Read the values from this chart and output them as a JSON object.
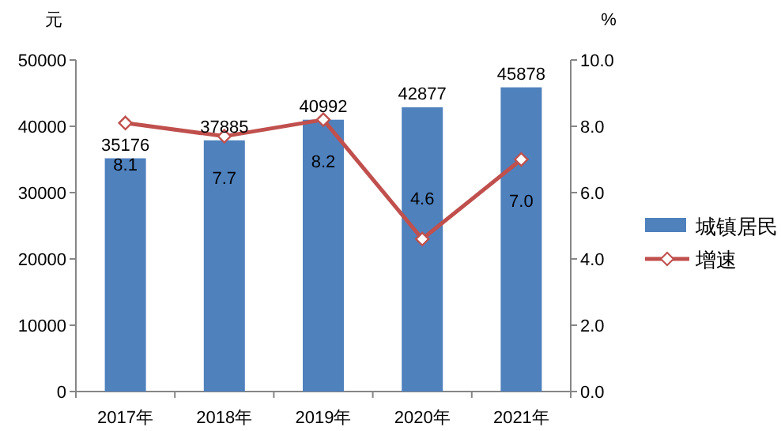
{
  "chart_data": {
    "type": "bar",
    "ylabel": "元",
    "y2label": "%",
    "categories": [
      "2017年",
      "2018年",
      "2019年",
      "2020年",
      "2021年"
    ],
    "series": [
      {
        "name": "城镇居民",
        "color": "#4f81bd",
        "values": [
          35176,
          37885,
          40992,
          42877,
          45878
        ]
      },
      {
        "name": "增速",
        "type": "line",
        "axis": "y2",
        "color": "#c0504d",
        "marker": "diamond",
        "values": [
          8.1,
          7.7,
          8.2,
          4.6,
          7.0
        ],
        "value_labels": [
          "8.1",
          "7.7",
          "8.2",
          "4.6",
          "7.0"
        ]
      }
    ],
    "ylim": [
      0,
      50000
    ],
    "yticks": [
      0,
      10000,
      20000,
      30000,
      40000,
      50000
    ],
    "y2lim": [
      0,
      10
    ],
    "y2ticks": [
      {
        "value": 0,
        "label": "0.0"
      },
      {
        "value": 2,
        "label": "2.0"
      },
      {
        "value": 4,
        "label": "4.0"
      },
      {
        "value": 6,
        "label": "6.0"
      },
      {
        "value": 8,
        "label": "8.0"
      },
      {
        "value": 10,
        "label": "10.0"
      }
    ],
    "data_labels": true,
    "legend": "right",
    "grid": false
  }
}
